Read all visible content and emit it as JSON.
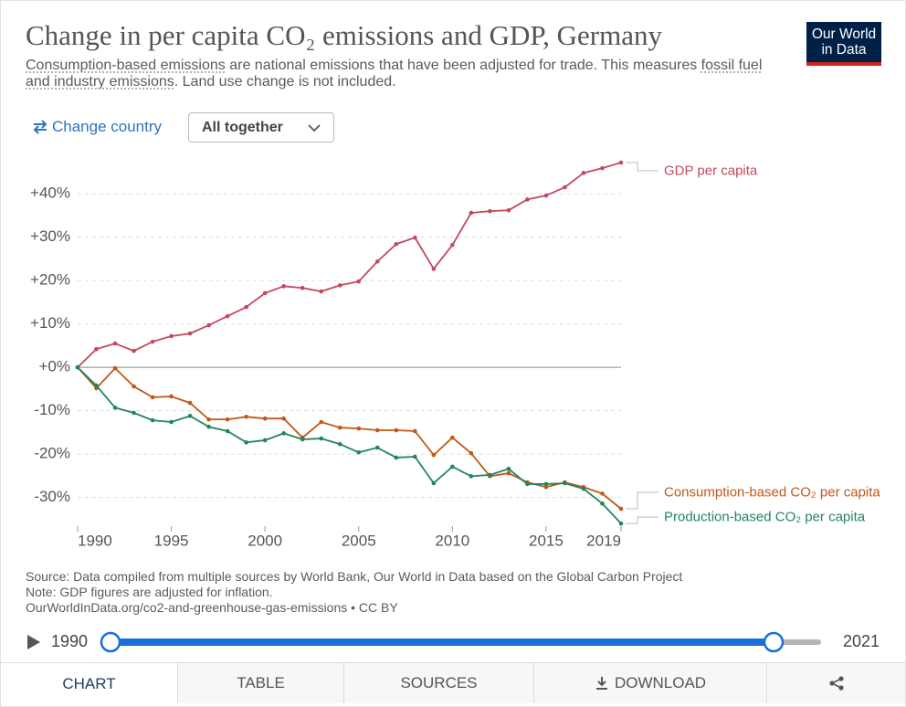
{
  "chart_data": {
    "type": "line",
    "title": "Change in per capita CO₂ emissions and GDP, Germany",
    "subtitle": [
      "Consumption-based emissions",
      " are national emissions that have been adjusted for trade. This measures ",
      "fossil fuel and industry emissions",
      ". Land use change is not included."
    ],
    "x": [
      1990,
      1991,
      1992,
      1993,
      1994,
      1995,
      1996,
      1997,
      1998,
      1999,
      2000,
      2001,
      2002,
      2003,
      2004,
      2005,
      2006,
      2007,
      2008,
      2009,
      2010,
      2011,
      2012,
      2013,
      2014,
      2015,
      2016,
      2017,
      2018,
      2019
    ],
    "xlim": [
      1990,
      2019
    ],
    "xticks": [
      1990,
      1995,
      2000,
      2005,
      2010,
      2015,
      2019
    ],
    "ylim": [
      -36.6,
      47.4
    ],
    "yticks": [
      {
        "value": -30,
        "label": "-30%"
      },
      {
        "value": -20,
        "label": "-20%"
      },
      {
        "value": -10,
        "label": "-10%"
      },
      {
        "value": 0,
        "label": "+0%"
      },
      {
        "value": 10,
        "label": "+10%"
      },
      {
        "value": 20,
        "label": "+20%"
      },
      {
        "value": 30,
        "label": "+30%"
      },
      {
        "value": 40,
        "label": "+40%"
      }
    ],
    "grid": true,
    "series": [
      {
        "name": "GDP per capita",
        "color": "#c4485f",
        "values": [
          0,
          4.2,
          5.5,
          3.8,
          5.9,
          7.2,
          7.8,
          9.7,
          11.8,
          13.9,
          17.1,
          18.7,
          18.3,
          17.5,
          18.9,
          19.8,
          24.4,
          28.4,
          29.9,
          22.7,
          28.2,
          35.6,
          36.0,
          36.2,
          38.7,
          39.6,
          41.5,
          44.8,
          45.9,
          47.2
        ]
      },
      {
        "name": "Consumption-based CO₂ per capita",
        "color": "#c05917",
        "values": [
          0,
          -4.8,
          -0.2,
          -4.4,
          -6.9,
          -6.7,
          -8.2,
          -12.0,
          -12.0,
          -11.4,
          -11.8,
          -11.8,
          -16.2,
          -12.6,
          -13.9,
          -14.1,
          -14.5,
          -14.5,
          -14.7,
          -20.2,
          -16.2,
          -19.8,
          -25.1,
          -24.4,
          -26.5,
          -27.6,
          -26.5,
          -27.6,
          -29.1,
          -32.6
        ]
      },
      {
        "name": "Production-based CO₂ per capita",
        "color": "#23845f",
        "values": [
          0,
          -4.2,
          -9.3,
          -10.5,
          -12.2,
          -12.6,
          -11.2,
          -13.7,
          -14.7,
          -17.3,
          -16.8,
          -15.2,
          -16.6,
          -16.4,
          -17.7,
          -19.6,
          -18.5,
          -20.8,
          -20.6,
          -26.7,
          -22.9,
          -25.1,
          -24.8,
          -23.4,
          -26.9,
          -26.9,
          -26.7,
          -28.0,
          -31.4,
          -36.0
        ]
      }
    ]
  },
  "logo": [
    "Our World",
    "in Data"
  ],
  "controls": {
    "change_country": "Change country",
    "dropdown": "All together"
  },
  "footer": [
    "Source: Data compiled from multiple sources by World Bank, Our World in Data based on the Global Carbon Project",
    "Note: GDP figures are adjusted for inflation.",
    "OurWorldInData.org/co2-and-greenhouse-gas-emissions • CC BY"
  ],
  "timeline": {
    "start": "1990",
    "end": "2021"
  },
  "tabs": [
    "CHART",
    "TABLE",
    "SOURCES",
    "DOWNLOAD"
  ]
}
